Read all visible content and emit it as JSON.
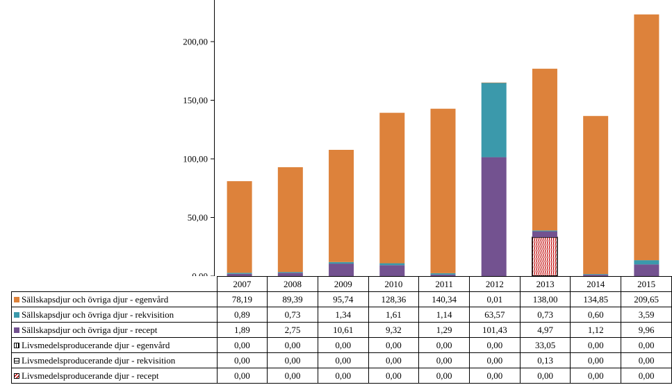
{
  "chart_data": {
    "type": "bar",
    "stacked": true,
    "title": "",
    "xlabel": "",
    "ylabel": "",
    "ylim": [
      0,
      230
    ],
    "yticks": [
      "0,00",
      "50,00",
      "100,00",
      "150,00",
      "200,00"
    ],
    "categories": [
      "2007",
      "2008",
      "2009",
      "2010",
      "2011",
      "2012",
      "2013",
      "2014",
      "2015"
    ],
    "series": [
      {
        "name": "Sällskapsdjur och övriga djur - egenvård",
        "color": "#dd823b",
        "swatch": "egen",
        "values": [
          78.19,
          89.39,
          95.74,
          128.36,
          140.34,
          0.01,
          138.0,
          134.85,
          209.65
        ],
        "labels": [
          "78,19",
          "89,39",
          "95,74",
          "128,36",
          "140,34",
          "0,01",
          "138,00",
          "134,85",
          "209,65"
        ]
      },
      {
        "name": "Sällskapsdjur och övriga djur - rekvisition",
        "color": "#3b99ab",
        "swatch": "rek",
        "values": [
          0.89,
          0.73,
          1.34,
          1.61,
          1.14,
          63.57,
          0.73,
          0.6,
          3.59
        ],
        "labels": [
          "0,89",
          "0,73",
          "1,34",
          "1,61",
          "1,14",
          "63,57",
          "0,73",
          "0,60",
          "3,59"
        ]
      },
      {
        "name": "Sällskapsdjur och övriga djur - recept",
        "color": "#735290",
        "swatch": "rec",
        "values": [
          1.89,
          2.75,
          10.61,
          9.32,
          1.29,
          101.43,
          4.97,
          1.12,
          9.96
        ],
        "labels": [
          "1,89",
          "2,75",
          "10,61",
          "9,32",
          "1,29",
          "101,43",
          "4,97",
          "1,12",
          "9,96"
        ]
      },
      {
        "name": "Livsmedelsproducerande djur - egenvård",
        "color": "#000000",
        "swatch": "lp1",
        "values": [
          0,
          0,
          0,
          0,
          0,
          0,
          33.05,
          0,
          0
        ],
        "labels": [
          "0,00",
          "0,00",
          "0,00",
          "0,00",
          "0,00",
          "0,00",
          "33,05",
          "0,00",
          "0,00"
        ]
      },
      {
        "name": "Livsmedelsproducerande djur - rekvisition",
        "color": "#000000",
        "swatch": "lp2",
        "values": [
          0,
          0,
          0,
          0,
          0,
          0,
          0.13,
          0,
          0
        ],
        "labels": [
          "0,00",
          "0,00",
          "0,00",
          "0,00",
          "0,00",
          "0,00",
          "0,13",
          "0,00",
          "0,00"
        ]
      },
      {
        "name": "Livsmedelsproducerande djur - recept",
        "color": "#c00000",
        "swatch": "lp3",
        "values": [
          0,
          0,
          0,
          0,
          0,
          0,
          0,
          0,
          0
        ],
        "labels": [
          "0,00",
          "0,00",
          "0,00",
          "0,00",
          "0,00",
          "0,00",
          "0,00",
          "0,00",
          "0,00"
        ]
      }
    ],
    "grid": false,
    "legend": "data table below chart"
  }
}
